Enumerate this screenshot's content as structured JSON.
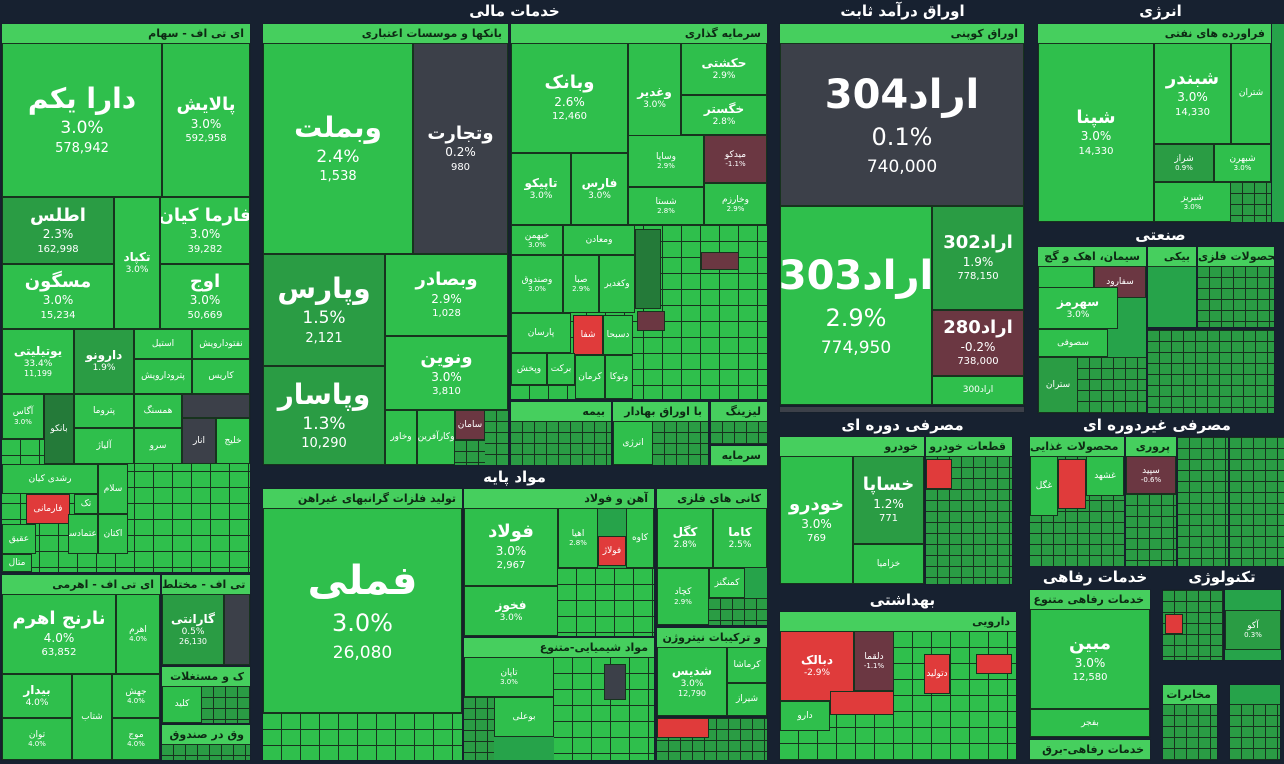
{
  "sectors": {
    "energy": "انرژی",
    "fixed_income": "اوراق درآمد ثابت",
    "financial": "خدمات مالی",
    "industrial": "صنعتی",
    "consumer_cyclical": "مصرفی دوره ای",
    "consumer_noncyclical": "مصرفی غیردوره ای",
    "basic_materials": "مواد پایه",
    "health": "بهداشتی",
    "welfare": "خدمات رفاهی",
    "technology": "تکنولوژی"
  },
  "groups": {
    "etf_stock": "ای تی اف - سهام",
    "etf_leverage": "ای تی اف - اهرمی",
    "etf_mixed": "ای تی اف - مختلط",
    "etf_fund": "ک و مستغلات",
    "etf_fund2": "وق در صندوق",
    "banks": "بانکها و موسسات اعتباری",
    "investment": "سرمایه گذاری",
    "insurance": "بیمه",
    "bonds": "با اوراق بهادار",
    "leasing": "لیزینگ",
    "capital": "سرمایه",
    "coupon": "اوراق کوپنی",
    "refining": "فراورده های نفتی",
    "cement": "سیمان، اهک و گچ",
    "metal_products": "محصولات فلزی",
    "auto": "خودرو",
    "auto_parts": "قطعات خودرو",
    "food": "محصولات غذایی",
    "nonferrous": "تولید فلزات گرانبهای غیراهن",
    "steel": "آهن و فولاد",
    "metal_ores": "کانی های فلزی",
    "chemicals": "مواد شیمیایی-متنوع",
    "nitrogen": "و ترکیبات نیتروژن",
    "pharma": "دارویی",
    "welfare_diverse": "خدمات رفاهی متنوع",
    "welfare_power": "خدمات رفاهی-برق",
    "telecom": "مخابرات"
  },
  "tiles": {
    "dara": {
      "name": "دارا یکم",
      "pct": "3.0%",
      "vol": "578,942"
    },
    "palayesh": {
      "name": "پالایش",
      "pct": "3.0%",
      "vol": "592,958"
    },
    "atlas": {
      "name": "اطلس",
      "pct": "2.3%",
      "vol": "162,998"
    },
    "farma": {
      "name": "فارما کیان",
      "pct": "3.0%",
      "vol": "39,282"
    },
    "takpad": {
      "name": "تکپاد",
      "pct": "3.0%"
    },
    "maskan": {
      "name": "مسگون",
      "pct": "3.0%",
      "vol": "15,234"
    },
    "owj": {
      "name": "اوج",
      "pct": "3.0%",
      "vol": "50,669"
    },
    "utility": {
      "name": "یوتیلیتی",
      "pct": "33.4%",
      "vol": "11,199"
    },
    "daruno": {
      "name": "دارونو",
      "pct": "1.9%"
    },
    "estil": {
      "name": "استیل"
    },
    "naft": {
      "name": "نفتودارویش"
    },
    "petro": {
      "name": "پترودارویش"
    },
    "karis": {
      "name": "کاریس"
    },
    "agas": {
      "name": "آگاس",
      "pct": "3.0%"
    },
    "banko": {
      "name": "بانکو"
    },
    "petroma": {
      "name": "پتروما"
    },
    "hamsang": {
      "name": "همسنگ"
    },
    "alyaz": {
      "name": "آلیاژ"
    },
    "sarv": {
      "name": "سرو"
    },
    "anar": {
      "name": "انار"
    },
    "khalij": {
      "name": "خلیج"
    },
    "roshd": {
      "name": "رشدی کیان"
    },
    "tek": {
      "name": "تک"
    },
    "salam": {
      "name": "سلام"
    },
    "farmani": {
      "name": "فارمانی"
    },
    "aghigh": {
      "name": "عقیق"
    },
    "etemad": {
      "name": "اعتمادسا"
    },
    "aktan": {
      "name": "اکتان"
    },
    "mental": {
      "name": "متال"
    },
    "narenj": {
      "name": "نارنج اهرم",
      "pct": "4.0%",
      "vol": "63,852"
    },
    "ahrom": {
      "name": "اهرم",
      "pct": "4.0%"
    },
    "bidar": {
      "name": "بیدار",
      "pct": "4.0%"
    },
    "jahesh": {
      "name": "جهش",
      "pct": "4.0%"
    },
    "shetab": {
      "name": "شتاب"
    },
    "tavan": {
      "name": "توان",
      "pct": "4.0%"
    },
    "mowj": {
      "name": "موج",
      "pct": "4.0%"
    },
    "garanti": {
      "name": "گارانتی",
      "pct": "0.5%",
      "vol": "26,130"
    },
    "kalid": {
      "name": "کلید"
    },
    "vbmellat": {
      "name": "وبملت",
      "pct": "2.4%",
      "vol": "1,538"
    },
    "vtejarat": {
      "name": "وتجارت",
      "pct": "0.2%",
      "vol": "980"
    },
    "vpars": {
      "name": "وپارس",
      "pct": "1.5%",
      "vol": "2,121"
    },
    "vsaderat": {
      "name": "وبصادر",
      "pct": "2.9%",
      "vol": "1,028"
    },
    "vnovin": {
      "name": "ونوین",
      "pct": "3.0%",
      "vol": "3,810"
    },
    "vpasar": {
      "name": "وپاسار",
      "pct": "1.3%",
      "vol": "10,290"
    },
    "vkarafarin": {
      "name": "وکارآفرین"
    },
    "saman": {
      "name": "سامان"
    },
    "vkhavar": {
      "name": "وخاور"
    },
    "vbank": {
      "name": "وبانک",
      "pct": "2.6%",
      "vol": "12,460"
    },
    "hekmat": {
      "name": "حکشتی",
      "pct": "2.9%"
    },
    "vghadir": {
      "name": "وغدیر",
      "pct": "3.0%"
    },
    "khgostar": {
      "name": "خگستر",
      "pct": "2.8%"
    },
    "tapiko": {
      "name": "تاپیکو",
      "pct": "3.0%"
    },
    "fars": {
      "name": "فارس",
      "pct": "3.0%"
    },
    "vsapa": {
      "name": "وساپا",
      "pct": "2.9%"
    },
    "midco": {
      "name": "میدکو",
      "pct": "-1.1%"
    },
    "shasta": {
      "name": "شستا",
      "pct": "2.8%"
    },
    "vkharazm": {
      "name": "وخارزم",
      "pct": "2.9%"
    },
    "khbahman": {
      "name": "خبهمن",
      "pct": "3.0%"
    },
    "vsandogh": {
      "name": "وصندوق",
      "pct": "3.0%"
    },
    "vamaaden": {
      "name": "ومعادن"
    },
    "sedna": {
      "name": "صبا",
      "pct": "2.9%"
    },
    "vkadir": {
      "name": "وکغدیر"
    },
    "parsan": {
      "name": "پارسان"
    },
    "shafa": {
      "name": "شفا"
    },
    "dsina": {
      "name": "دسبحا"
    },
    "vpakhsh": {
      "name": "وپخش"
    },
    "barkat": {
      "name": "برکت"
    },
    "kerman": {
      "name": "کرمان"
    },
    "vtoka": {
      "name": "وتوکا"
    },
    "energy_b": {
      "name": "انرژی"
    },
    "arad304": {
      "name": "اراد304",
      "pct": "0.1%",
      "vol": "740,000"
    },
    "arad303": {
      "name": "اراد303",
      "pct": "2.9%",
      "vol": "774,950"
    },
    "arad302": {
      "name": "اراد302",
      "pct": "1.9%",
      "vol": "778,150"
    },
    "arad280": {
      "name": "اراد280",
      "pct": "-0.2%",
      "vol": "738,000"
    },
    "arad300": {
      "name": "اراد300"
    },
    "shepna": {
      "name": "شپنا",
      "pct": "3.0%",
      "vol": "14,330"
    },
    "shbandar": {
      "name": "شبندر",
      "pct": "3.0%",
      "vol": "14,330"
    },
    "shtran": {
      "name": "شتران"
    },
    "shiraz": {
      "name": "شراز",
      "pct": "0.9%"
    },
    "shbehran": {
      "name": "شبهرن",
      "pct": "3.0%"
    },
    "shpriz": {
      "name": "شبریز",
      "pct": "3.0%"
    },
    "sefarog": {
      "name": "سفارود"
    },
    "sehormoz": {
      "name": "سهرمز",
      "pct": "3.0%"
    },
    "sesofi": {
      "name": "سصوفی"
    },
    "setran": {
      "name": "ستران"
    },
    "fameli": {
      "name": "فملی",
      "pct": "3.0%",
      "vol": "26,080"
    },
    "folad": {
      "name": "فولاد",
      "pct": "3.0%",
      "vol": "2,967"
    },
    "fokhuz": {
      "name": "فخوز",
      "pct": "3.0%"
    },
    "ahya": {
      "name": "اهیا",
      "pct": "2.8%"
    },
    "foladz": {
      "name": "فولاژ"
    },
    "kave": {
      "name": "کاوه"
    },
    "kegol": {
      "name": "کگل",
      "pct": "2.8%"
    },
    "kama": {
      "name": "کاما",
      "pct": "2.5%"
    },
    "kechad": {
      "name": "کچاد",
      "pct": "2.9%"
    },
    "kemegnez": {
      "name": "کمنگنز"
    },
    "tapan": {
      "name": "تاپان",
      "pct": "3.0%"
    },
    "bofan": {
      "name": "بوعلی"
    },
    "shdis": {
      "name": "شدیس",
      "pct": "3.0%",
      "vol": "12,790"
    },
    "kermasha": {
      "name": "کرماشا"
    },
    "shiraz2": {
      "name": "شیراز"
    },
    "khodro": {
      "name": "خودرو",
      "pct": "3.0%",
      "vol": "769"
    },
    "khsapa": {
      "name": "خساپا",
      "pct": "1.2%",
      "vol": "771"
    },
    "khzamia": {
      "name": "خزامیا"
    },
    "ghsahar": {
      "name": "غگل"
    },
    "ghoshit": {
      "name": "غشهد"
    },
    "sepid": {
      "name": "سپید",
      "pct": "-0.6%"
    },
    "dbalk": {
      "name": "دبالک",
      "pct": "-2.9%"
    },
    "dlqma": {
      "name": "دلقما",
      "pct": "-1.1%"
    },
    "dabdidar": {
      "name": "دتولید"
    },
    "daru": {
      "name": "دارو"
    },
    "mobin": {
      "name": "مبین",
      "pct": "3.0%",
      "vol": "12,580"
    },
    "bafgher": {
      "name": "بفجر"
    },
    "ako": {
      "name": "آکو",
      "pct": "0.3%"
    }
  }
}
